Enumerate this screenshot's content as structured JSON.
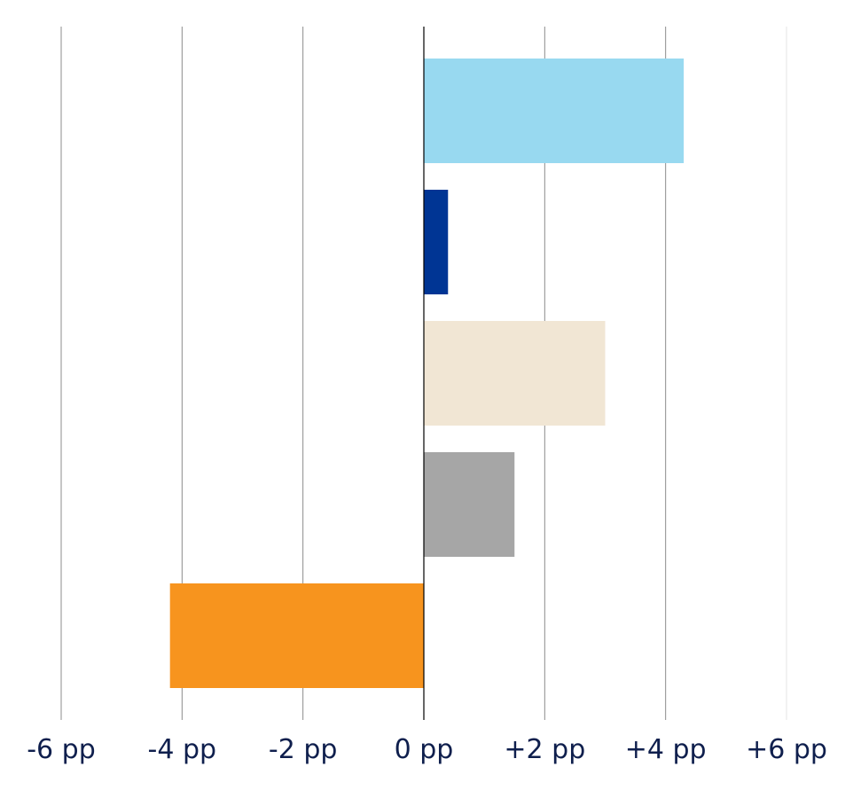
{
  "chart_data": {
    "type": "bar",
    "orientation": "horizontal",
    "title": "",
    "xlabel": "",
    "ylabel": "",
    "xlim": [
      -6,
      6
    ],
    "x_ticks": [
      -6,
      -4,
      -2,
      0,
      2,
      4,
      6
    ],
    "x_tick_labels": [
      "-6 pp",
      "-4 pp",
      "-2 pp",
      "0 pp",
      "+2 pp",
      "+4 pp",
      "+6 pp"
    ],
    "grid": true,
    "legend": "none",
    "bars": [
      {
        "value": 4.3,
        "color": "#98d9f0"
      },
      {
        "value": 0.4,
        "color": "#003594"
      },
      {
        "value": 3.0,
        "color": "#f1e6d4"
      },
      {
        "value": 1.5,
        "color": "#a6a6a6"
      },
      {
        "value": -4.2,
        "color": "#f7941e"
      }
    ],
    "colors": {
      "gridline": "#8c8c8c",
      "zero_line": "#000000",
      "tick_text": "#0f1f4d"
    }
  }
}
